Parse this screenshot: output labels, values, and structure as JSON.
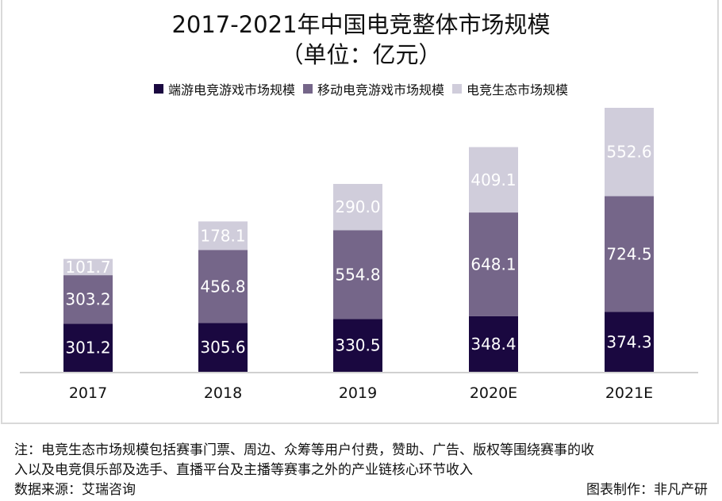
{
  "chart_data": {
    "type": "stacked-bar",
    "title": "2017-2021年中国电竞整体市场规模",
    "subtitle": "（单位：亿元）",
    "categories": [
      "2017",
      "2018",
      "2019",
      "2020E",
      "2021E"
    ],
    "series": [
      {
        "name": "端游电竞游戏市场规模",
        "color": "#1a0840",
        "values": [
          301.2,
          305.6,
          330.5,
          348.4,
          374.3
        ]
      },
      {
        "name": "移动电竞游戏市场规模",
        "color": "#756689",
        "values": [
          303.2,
          456.8,
          554.8,
          648.1,
          724.5
        ]
      },
      {
        "name": "电竞生态市场规模",
        "color": "#d0cddb",
        "values": [
          101.7,
          178.1,
          290.0,
          409.1,
          552.6
        ]
      }
    ],
    "legend": "top",
    "grid": false
  },
  "footer": {
    "note_line1": "注：电竞生态市场规模包括赛事门票、周边、众筹等用户付费，赞助、广告、版权等围绕赛事的收",
    "note_line2": "入以及电竞俱乐部及选手、直播平台及主播等赛事之外的产业链核心环节收入",
    "source": "数据来源：艾瑞咨询",
    "credit": "图表制作：非凡产研"
  }
}
